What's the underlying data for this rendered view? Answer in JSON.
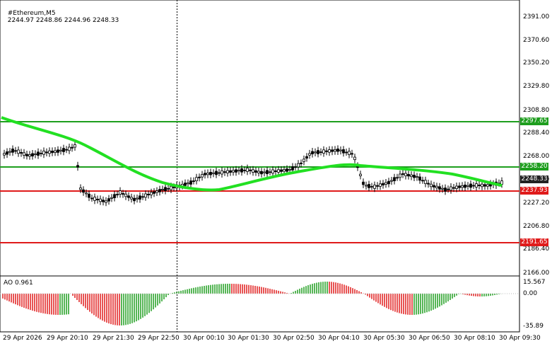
{
  "header": {
    "symbol": "#Ethereum,M5",
    "ohlc": "2244.97 2248.86 2244.96 2248.33"
  },
  "price_axis": {
    "ticks": [
      "2391.00",
      "2370.60",
      "2350.20",
      "2329.80",
      "2308.80",
      "2288.40",
      "2268.00",
      "2247.60",
      "2227.20",
      "2206.80",
      "2186.40",
      "2166.00"
    ]
  },
  "levels": [
    {
      "label": "2297.65",
      "color": "#1e9e1e"
    },
    {
      "label": "2258.20",
      "color": "#1e9e1e"
    },
    {
      "label": "2248.33",
      "color": "#222222"
    },
    {
      "label": "2237.93",
      "color": "#e01b1b"
    },
    {
      "label": "2191.65",
      "color": "#e01b1b"
    }
  ],
  "ao": {
    "title": "AO 0.961",
    "ticks": [
      "15.567",
      "0.00",
      "-35.89"
    ]
  },
  "time_axis": {
    "labels": [
      "29 Apr 2026",
      "29 Apr 20:10",
      "29 Apr 21:30",
      "29 Apr 22:50",
      "30 Apr 00:10",
      "30 Apr 01:30",
      "30 Apr 02:50",
      "30 Apr 04:10",
      "30 Apr 05:30",
      "30 Apr 06:50",
      "30 Apr 08:10",
      "30 Apr 09:30"
    ]
  },
  "colors": {
    "ma": "#22e022",
    "up_bar": "#1e9e1e",
    "down_bar": "#e01b1b",
    "candle": "#000000"
  }
}
